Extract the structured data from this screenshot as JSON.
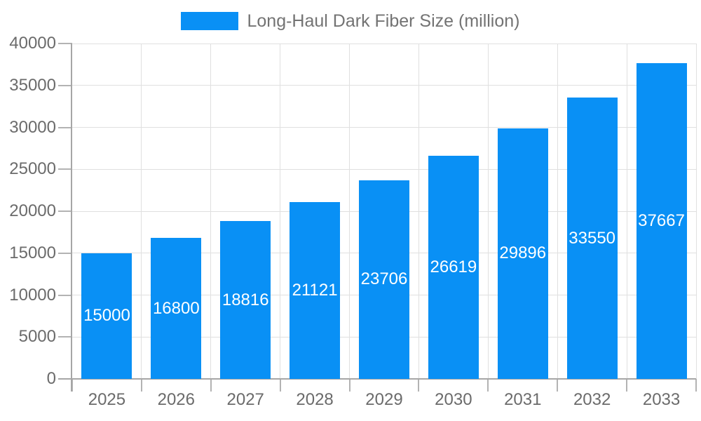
{
  "legend": {
    "label": "Long-Haul Dark Fiber Size (million)"
  },
  "chart_data": {
    "type": "bar",
    "title": "Long-Haul Dark Fiber Size (million)",
    "series_name": "Long-Haul Dark Fiber Size (million)",
    "categories": [
      "2025",
      "2026",
      "2027",
      "2028",
      "2029",
      "2030",
      "2031",
      "2032",
      "2033"
    ],
    "values": [
      15000,
      16800,
      18816,
      21121,
      23706,
      26619,
      29896,
      33550,
      37667
    ],
    "value_labels": [
      "15000",
      "16800",
      "18816",
      "21121",
      "23706",
      "26619",
      "29896",
      "33550",
      "37667"
    ],
    "xlabel": "",
    "ylabel": "",
    "ylim": [
      0,
      40000
    ],
    "ytick_step": 5000,
    "yticks": [
      0,
      5000,
      10000,
      15000,
      20000,
      25000,
      30000,
      35000,
      40000
    ],
    "grid": true,
    "legend_position": "top",
    "colors": {
      "bar": "#0990f5",
      "grid": "#e0e0e0",
      "axis": "#a6a6a6",
      "tick": "#b3b3b3",
      "axis_text": "#6b6b6b",
      "legend_text": "#737373",
      "value_label": "#ffffff",
      "background": "#ffffff"
    }
  }
}
